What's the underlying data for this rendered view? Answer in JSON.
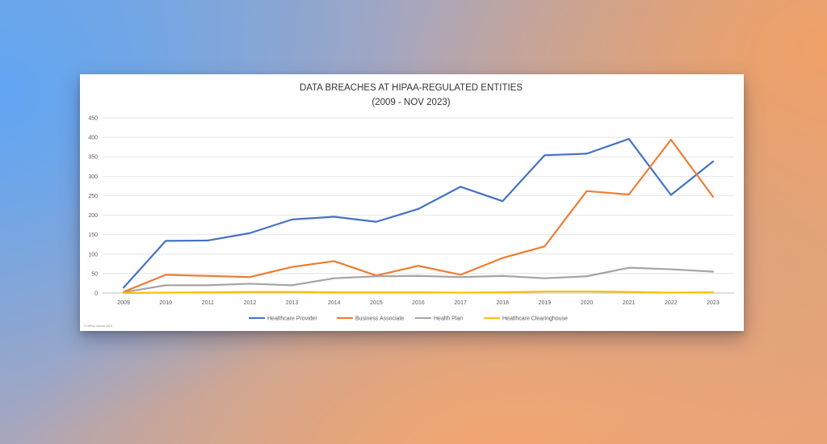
{
  "chart_data": {
    "type": "line",
    "title": "DATA BREACHES AT HIPAA-REGULATED ENTITIES",
    "subtitle": "(2009 - NOV 2023)",
    "xlabel": "",
    "ylabel": "",
    "ylim": [
      0,
      450
    ],
    "yticks": [
      0,
      50,
      100,
      150,
      200,
      250,
      300,
      350,
      400,
      450
    ],
    "grid": true,
    "legend_position": "bottom",
    "categories": [
      "2009",
      "2010",
      "2011",
      "2012",
      "2013",
      "2014",
      "2015",
      "2016",
      "2017",
      "2018",
      "2019",
      "2020",
      "2021",
      "2022",
      "2023"
    ],
    "series": [
      {
        "name": "Healthcare Provider",
        "color": "#4472c4",
        "values": [
          14,
          134,
          135,
          154,
          189,
          196,
          183,
          216,
          273,
          236,
          354,
          358,
          396,
          252,
          338
        ]
      },
      {
        "name": "Business Associate",
        "color": "#ed7d31",
        "values": [
          3,
          47,
          44,
          41,
          67,
          82,
          45,
          70,
          47,
          90,
          120,
          262,
          253,
          394,
          247
        ]
      },
      {
        "name": "Health Plan",
        "color": "#a5a5a5",
        "values": [
          2,
          20,
          20,
          24,
          20,
          38,
          43,
          44,
          41,
          44,
          38,
          43,
          65,
          61,
          55
        ]
      },
      {
        "name": "Healthcare Clearinghouse",
        "color": "#ffc000",
        "values": [
          0,
          1,
          2,
          3,
          3,
          2,
          2,
          2,
          1,
          2,
          4,
          4,
          3,
          1,
          2
        ]
      }
    ],
    "copyright": "© HIPAA Journal 2023"
  }
}
